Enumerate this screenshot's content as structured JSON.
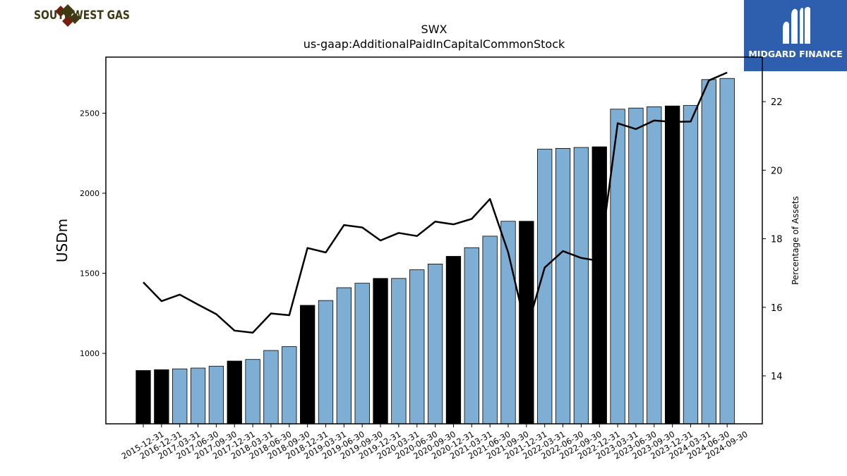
{
  "header": {
    "left_logo_text": "SOUTHWEST GAS",
    "right_logo_text": "MIDGARD FINANCE"
  },
  "chart_data": {
    "type": "bar",
    "title": "SWX",
    "subtitle": "us-gaap:AdditionalPaidInCapitalCommonStock",
    "ylabel": "USDm",
    "y2label": "Percentage of Assets",
    "ylim": [
      560,
      2850
    ],
    "y2lim": [
      12.6,
      23.3
    ],
    "yticks": [
      1000,
      1500,
      2000,
      2500
    ],
    "y2ticks": [
      14,
      16,
      18,
      20,
      22
    ],
    "categories": [
      "2015-12-31",
      "2016-12-31",
      "2017-03-31",
      "2017-06-30",
      "2017-09-30",
      "2017-12-31",
      "2018-03-31",
      "2018-06-30",
      "2018-09-30",
      "2018-12-31",
      "2019-03-31",
      "2019-06-30",
      "2019-09-30",
      "2019-12-31",
      "2020-03-31",
      "2020-06-30",
      "2020-09-30",
      "2020-12-31",
      "2021-03-31",
      "2021-06-30",
      "2021-09-30",
      "2021-12-31",
      "2022-03-31",
      "2022-06-30",
      "2022-09-30",
      "2022-12-31",
      "2023-03-31",
      "2023-06-30",
      "2023-09-30",
      "2023-12-31",
      "2024-03-31",
      "2024-06-30",
      "2024-09-30"
    ],
    "series": [
      {
        "type": "bar",
        "values": [
          893,
          898,
          903,
          908,
          920,
          952,
          962,
          1018,
          1042,
          1300,
          1330,
          1410,
          1438,
          1468,
          1468,
          1522,
          1558,
          1606,
          1660,
          1732,
          1825,
          1825,
          2275,
          2280,
          2286,
          2290,
          2525,
          2532,
          2540,
          2545,
          2548,
          2710,
          2717
        ],
        "annual": [
          true,
          true,
          false,
          false,
          false,
          true,
          false,
          false,
          false,
          true,
          false,
          false,
          false,
          true,
          false,
          false,
          false,
          true,
          false,
          false,
          false,
          true,
          false,
          false,
          false,
          true,
          false,
          false,
          false,
          true,
          false,
          false,
          false
        ]
      },
      {
        "type": "line",
        "axis": "right",
        "values": [
          16.73,
          16.18,
          16.37,
          16.08,
          15.8,
          15.32,
          15.26,
          15.82,
          15.77,
          17.73,
          17.6,
          18.4,
          18.33,
          17.95,
          18.17,
          18.08,
          18.5,
          18.42,
          18.58,
          19.16,
          17.6,
          15.32,
          17.16,
          17.64,
          17.44,
          17.35,
          21.37,
          21.2,
          21.45,
          21.41,
          21.42,
          22.62,
          22.85
        ]
      }
    ],
    "colors": {
      "annual_bar": "#000000",
      "quarter_bar": "#7eaed3",
      "line": "#000000"
    }
  }
}
